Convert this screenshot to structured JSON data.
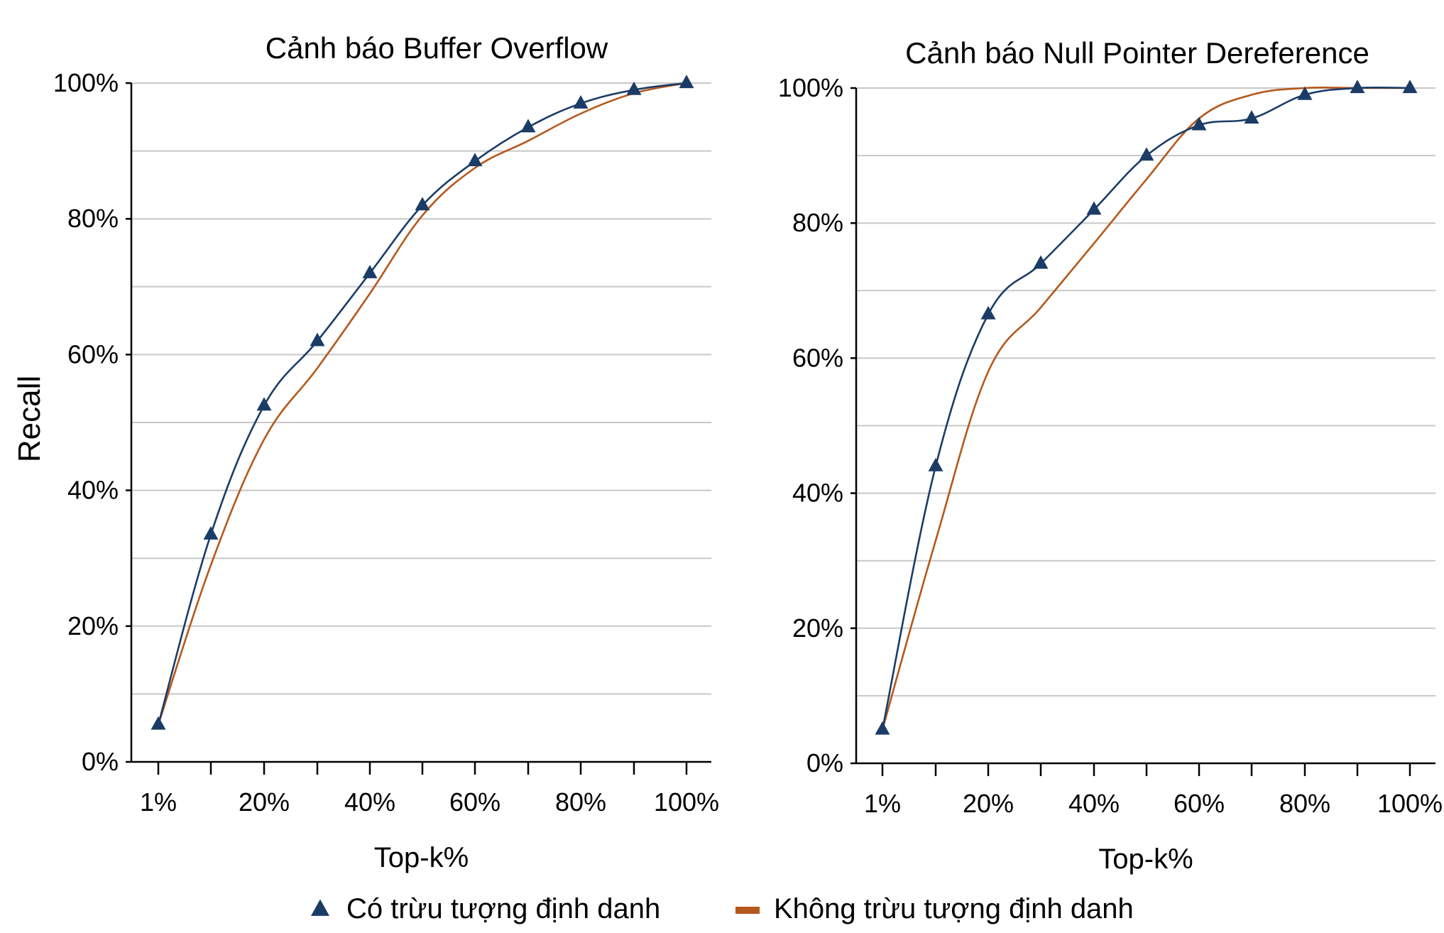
{
  "colors": {
    "with_abstraction": "#1b3c66",
    "without_abstraction": "#b5581c",
    "grid": "#c8c8c8",
    "axis": "#000000"
  },
  "legend": {
    "placement": "bottom-center",
    "items": [
      {
        "label": "Có trừu tượng định danh",
        "marker": "triangle"
      },
      {
        "label": "Không trừu tượng định danh",
        "marker": "line"
      }
    ]
  },
  "shared_ylabel": "Recall",
  "chart_data": [
    {
      "type": "line",
      "title": "Cảnh báo Buffer Overflow",
      "xlabel": "Top-k%",
      "ylabel": "Recall",
      "x": [
        1,
        10,
        20,
        30,
        40,
        50,
        60,
        70,
        80,
        90,
        100
      ],
      "x_tick_labels": [
        "1%",
        "",
        "20%",
        "",
        "40%",
        "",
        "60%",
        "",
        "80%",
        "",
        "100%"
      ],
      "ylim": [
        0,
        100
      ],
      "y_ticks": [
        0,
        20,
        40,
        60,
        80,
        100
      ],
      "y_tick_labels": [
        "0%",
        "20%",
        "40%",
        "60%",
        "80%",
        "100%"
      ],
      "grid": true,
      "series": [
        {
          "name": "Có trừu tượng định danh",
          "values": [
            5.5,
            33.5,
            52.5,
            62.0,
            72.0,
            82.0,
            88.5,
            93.5,
            97.0,
            99.0,
            100.0
          ]
        },
        {
          "name": "Không trừu tượng định danh",
          "values": [
            5.5,
            29.0,
            47.5,
            58.0,
            69.0,
            80.5,
            87.5,
            91.5,
            95.5,
            98.5,
            100.0
          ]
        }
      ]
    },
    {
      "type": "line",
      "title": "Cảnh báo Null Pointer Dereference",
      "xlabel": "Top-k%",
      "ylabel": "",
      "x": [
        1,
        10,
        20,
        30,
        40,
        50,
        60,
        70,
        80,
        90,
        100
      ],
      "x_tick_labels": [
        "1%",
        "",
        "20%",
        "",
        "40%",
        "",
        "60%",
        "",
        "80%",
        "",
        "100%"
      ],
      "ylim": [
        0,
        100
      ],
      "y_ticks": [
        0,
        20,
        40,
        60,
        80,
        100
      ],
      "y_tick_labels": [
        "0%",
        "20%",
        "40%",
        "60%",
        "80%",
        "100%"
      ],
      "grid": true,
      "series": [
        {
          "name": "Có trừu tượng định danh",
          "values": [
            5.0,
            44.0,
            66.5,
            74.0,
            82.0,
            90.0,
            94.5,
            95.5,
            99.0,
            100.0,
            100.0
          ]
        },
        {
          "name": "Không trừu tượng định danh",
          "values": [
            5.0,
            33.0,
            58.0,
            67.5,
            77.0,
            86.5,
            95.5,
            99.0,
            100.0,
            100.0,
            100.0
          ]
        }
      ]
    }
  ]
}
